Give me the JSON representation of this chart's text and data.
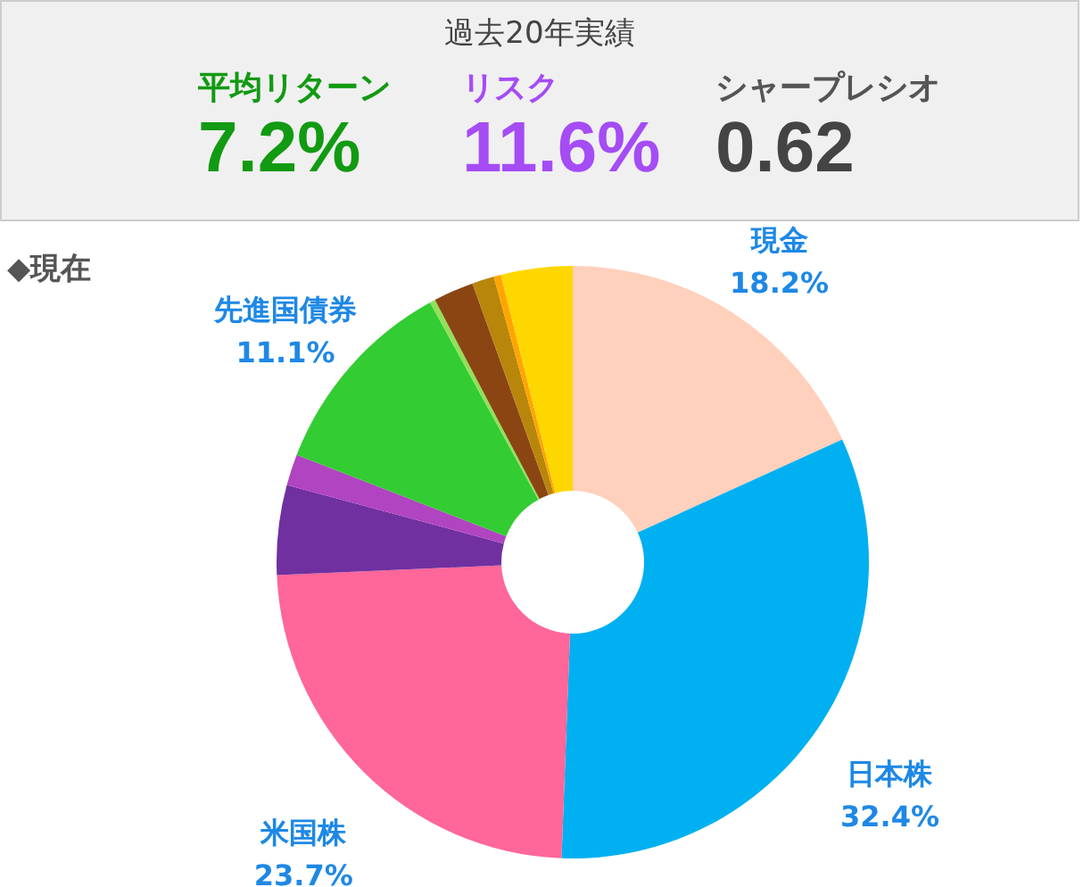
{
  "chart_data": [
    {
      "type": "other",
      "title": "過去20年実績",
      "annotations": [
        "平均リターン",
        "7.2%",
        "リスク",
        "11.6%",
        "シャープレシオ",
        "0.62"
      ]
    },
    {
      "type": "donut",
      "title": "◆現在",
      "categories": [
        "現金",
        "日本株",
        "米国株",
        null,
        null,
        "先進国債券",
        null,
        null,
        null,
        null,
        null
      ],
      "values": [
        18.2,
        32.4,
        23.7,
        4.9,
        1.7,
        11.1,
        0.3,
        2.2,
        1.2,
        0.4,
        3.9
      ],
      "colors": [
        "#ffd0bc",
        "#00b0f0",
        "#ff6699",
        "#7030a0",
        "#b144c0",
        "#33cc33",
        "#92e05a",
        "#8b4513",
        "#b8860b",
        "#ffa500",
        "#ffd700"
      ],
      "value_labels": [
        "18.2%",
        "32.4%",
        "23.7%",
        null,
        null,
        "11.1%",
        null,
        null,
        null,
        null,
        null
      ]
    }
  ]
}
